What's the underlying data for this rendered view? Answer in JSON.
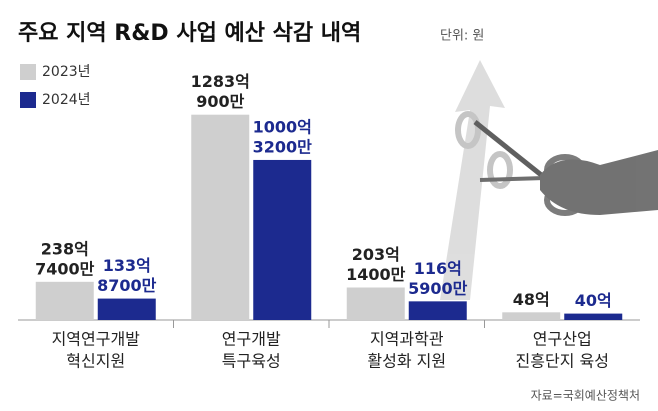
{
  "chart_data": {
    "type": "bar",
    "title": "주요 지역 R&D 사업 예산 삭감 내역",
    "subtitle": "단위: 원",
    "source": "자료=국회예산정책처",
    "categories": [
      [
        "지역연구개발",
        "혁신지원"
      ],
      [
        "연구개발",
        "특구육성"
      ],
      [
        "지역과학관",
        "활성화 지원"
      ],
      [
        "연구산업",
        "진흥단지 육성"
      ]
    ],
    "series": [
      {
        "name": "2023년",
        "color": "#cfcfcf",
        "values": [
          238.74,
          1283.09,
          203.14,
          48
        ],
        "value_labels": [
          [
            "238억",
            "7400만"
          ],
          [
            "1283억",
            "900만"
          ],
          [
            "203억",
            "1400만"
          ],
          [
            "48억"
          ]
        ]
      },
      {
        "name": "2024년",
        "color": "#1c2a8f",
        "values": [
          133.87,
          1000.32,
          116.59,
          40
        ],
        "value_labels": [
          [
            "133억",
            "8700만"
          ],
          [
            "1000억",
            "3200만"
          ],
          [
            "116억",
            "5900만"
          ],
          [
            "40억"
          ]
        ]
      }
    ]
  }
}
